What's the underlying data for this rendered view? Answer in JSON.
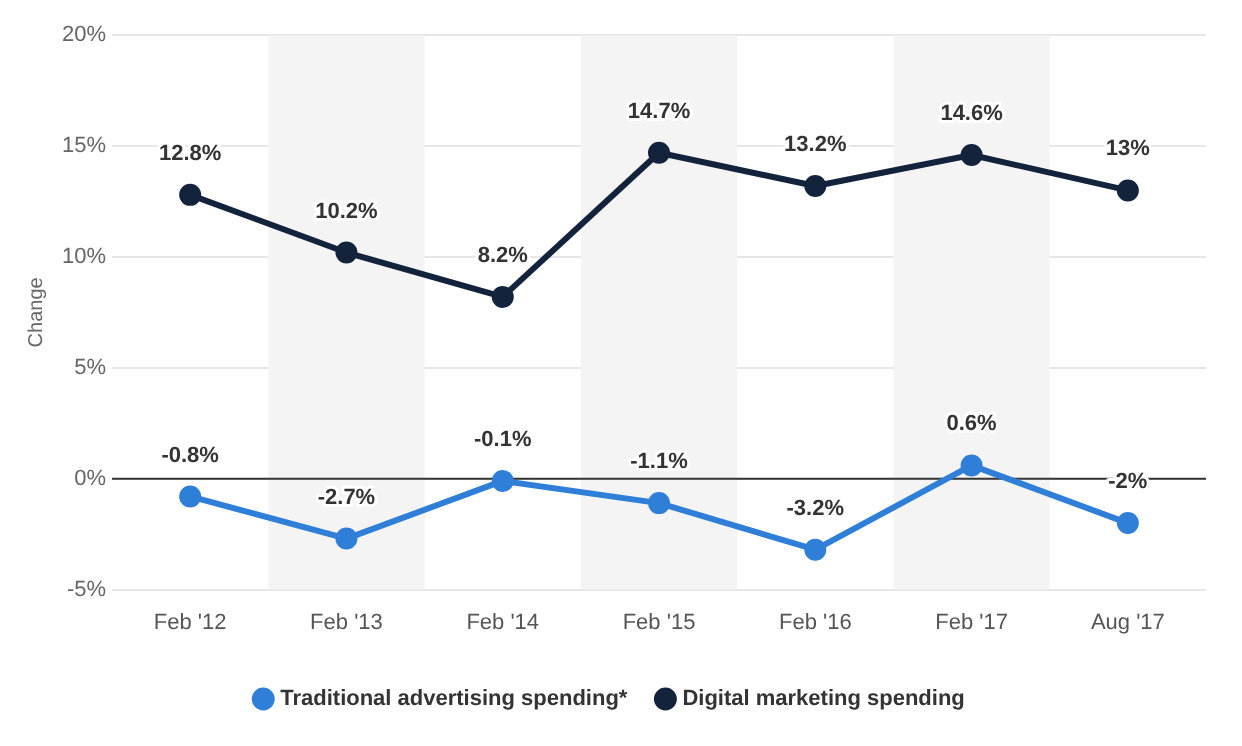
{
  "chart_data": {
    "type": "line",
    "ylabel": "Change",
    "categories": [
      "Feb '12",
      "Feb '13",
      "Feb '14",
      "Feb '15",
      "Feb '16",
      "Feb '17",
      "Aug '17"
    ],
    "series": [
      {
        "name": "Traditional advertising spending*",
        "color": "#2f7ed8",
        "values": [
          -0.8,
          -2.7,
          -0.1,
          -1.1,
          -3.2,
          0.6,
          -2
        ],
        "value_labels": [
          "-0.8%",
          "-2.7%",
          "-0.1%",
          "-1.1%",
          "-3.2%",
          "0.6%",
          "-2%"
        ]
      },
      {
        "name": "Digital marketing spending",
        "color": "#14233c",
        "values": [
          12.8,
          10.2,
          8.2,
          14.7,
          13.2,
          14.6,
          13
        ],
        "value_labels": [
          "12.8%",
          "10.2%",
          "8.2%",
          "14.7%",
          "13.2%",
          "14.6%",
          "13%"
        ]
      }
    ],
    "ylim": [
      -5,
      20
    ],
    "yticks": [
      {
        "value": -5,
        "label": "-5%"
      },
      {
        "value": 0,
        "label": "0%"
      },
      {
        "value": 5,
        "label": "5%"
      },
      {
        "value": 10,
        "label": "10%"
      },
      {
        "value": 15,
        "label": "15%"
      },
      {
        "value": 20,
        "label": "20%"
      }
    ],
    "ref_lines": [
      {
        "axis": "y",
        "value": 0,
        "color": "#333333"
      }
    ],
    "bands": [
      {
        "axis": "x",
        "from": "Feb '13",
        "to": "Feb '13",
        "color": "#f4f4f4"
      },
      {
        "axis": "x",
        "from": "Feb '15",
        "to": "Feb '15",
        "color": "#f4f4f4"
      },
      {
        "axis": "x",
        "from": "Feb '17",
        "to": "Feb '17",
        "color": "#f4f4f4"
      }
    ],
    "grid": "y",
    "legend": "bottom",
    "marker": "circle",
    "line_style": "solid"
  }
}
